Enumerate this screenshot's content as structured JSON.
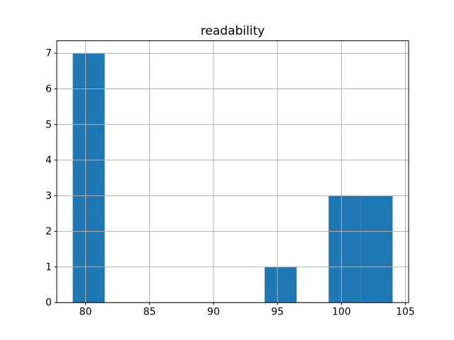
{
  "chart_data": {
    "type": "histogram",
    "title": "readability",
    "xlabel": "",
    "ylabel": "",
    "x_bin_edges": [
      79,
      81.5,
      84,
      86.5,
      89,
      91.5,
      94,
      96.5,
      99,
      101.5,
      104
    ],
    "counts": [
      7,
      0,
      0,
      0,
      0,
      0,
      1,
      0,
      3,
      3
    ],
    "xticks": [
      80,
      85,
      90,
      95,
      100,
      105
    ],
    "yticks": [
      0,
      1,
      2,
      3,
      4,
      5,
      6,
      7
    ],
    "xlim": [
      77.75,
      105.25
    ],
    "ylim": [
      0,
      7.35
    ],
    "grid": true,
    "legend": "none",
    "bar_color": "#1f77b4",
    "grid_color": "#b0b0b0",
    "axis_color": "#000000",
    "text_color": "#000000",
    "background_color": "#ffffff"
  }
}
